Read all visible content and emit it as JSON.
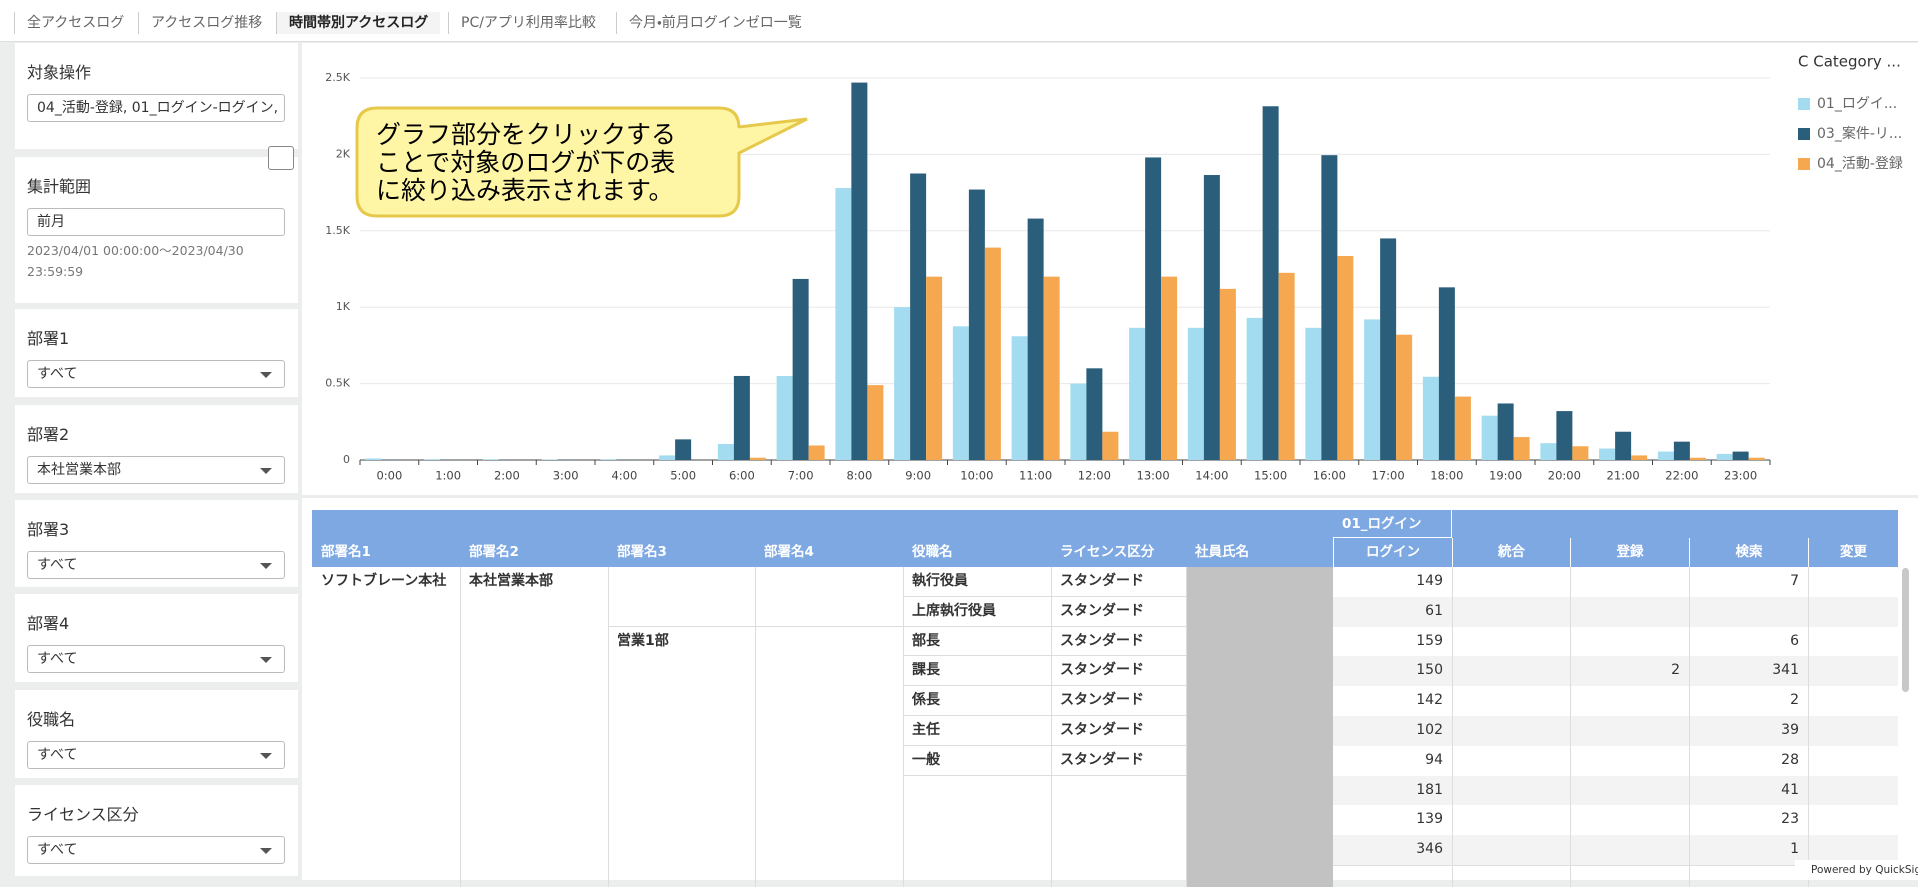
{
  "tabs": [
    "全アクセスログ",
    "アクセスログ推移",
    "時間帯別アクセスログ",
    "PC/アプリ利用率比較",
    "今月・前月ログインゼロ一覧"
  ],
  "active_tab": 2,
  "filters": [
    {
      "label": "対象操作",
      "value": "04_活動-登録, 01_ログイン-ログイン,"
    },
    {
      "label": "集計範囲",
      "value": "前月",
      "note": "2023/04/01 00:00:00～2023/04/30 23:59:59"
    },
    {
      "label": "部署1",
      "value": "すべて",
      "dropdown": true
    },
    {
      "label": "部署2",
      "value": "本社営業本部",
      "dropdown": true
    },
    {
      "label": "部署3",
      "value": "すべて",
      "dropdown": true
    },
    {
      "label": "部署4",
      "value": "すべて",
      "dropdown": true
    },
    {
      "label": "役職名",
      "value": "すべて",
      "dropdown": true
    },
    {
      "label": "ライセンス区分",
      "value": "すべて",
      "dropdown": true
    }
  ],
  "chart_data": {
    "type": "bar",
    "legend_title": "C Category ...",
    "legend": "right",
    "grid": true,
    "categories": [
      "0:00",
      "1:00",
      "2:00",
      "3:00",
      "4:00",
      "5:00",
      "6:00",
      "7:00",
      "8:00",
      "9:00",
      "10:00",
      "11:00",
      "12:00",
      "13:00",
      "14:00",
      "15:00",
      "16:00",
      "17:00",
      "18:00",
      "19:00",
      "20:00",
      "21:00",
      "22:00",
      "23:00"
    ],
    "series": [
      {
        "name": "01_ログイ...",
        "color": "#a3dcf0",
        "values": [
          10,
          5,
          5,
          3,
          5,
          30,
          105,
          550,
          1780,
          1000,
          875,
          810,
          500,
          865,
          865,
          930,
          865,
          920,
          545,
          290,
          110,
          75,
          55,
          40
        ]
      },
      {
        "name": "03_案件-リ...",
        "color": "#2b5e7a",
        "values": [
          2,
          2,
          2,
          2,
          2,
          135,
          550,
          1185,
          2470,
          1875,
          1770,
          1580,
          600,
          1980,
          1865,
          2315,
          1995,
          1450,
          1130,
          370,
          320,
          185,
          120,
          55
        ]
      },
      {
        "name": "04_活動-登録",
        "color": "#f5a84f",
        "values": [
          0,
          0,
          0,
          0,
          0,
          0,
          15,
          95,
          490,
          1200,
          1390,
          1200,
          185,
          1200,
          1120,
          1225,
          1335,
          820,
          415,
          150,
          90,
          30,
          15,
          15
        ]
      }
    ],
    "ylim": [
      0,
      2500
    ],
    "yticks": [
      0,
      {
        "value": 500,
        "label": "0.5K"
      },
      {
        "value": 1000,
        "label": "1K"
      },
      {
        "value": 1500,
        "label": "1.5K"
      },
      {
        "value": 2000,
        "label": "2K"
      },
      {
        "value": 2500,
        "label": "2.5K"
      }
    ]
  },
  "callout": {
    "lines": [
      "グラフ部分をクリックする",
      "ことで対象のログが下の表",
      "に絞り込み表示されます。"
    ]
  },
  "table": {
    "group_header": "01_ログイン",
    "columns": [
      "部署名1",
      "部署名2",
      "部署名3",
      "部署名4",
      "役職名",
      "ライセンス区分",
      "社員氏名",
      "ログイン",
      "統合",
      "登録",
      "検索",
      "変更"
    ],
    "rows": [
      {
        "0": "ソフトブレーン本社",
        "1": "本社営業本部",
        "4": "執行役員",
        "5": "スタンダード",
        "7": 149,
        "10": 7
      },
      {
        "4": "上席執行役員",
        "5": "スタンダード",
        "7": 61
      },
      {
        "2": "営業1部",
        "4": "部長",
        "5": "スタンダード",
        "7": 159,
        "10": 6
      },
      {
        "4": "課長",
        "5": "スタンダード",
        "7": 150,
        "9": 2,
        "10": 341
      },
      {
        "4": "係長",
        "5": "スタンダード",
        "7": 142,
        "10": 2
      },
      {
        "4": "主任",
        "5": "スタンダード",
        "7": 102,
        "10": 39
      },
      {
        "4": "一般",
        "5": "スタンダード",
        "7": 94,
        "10": 28
      },
      {
        "7": 181,
        "10": 41
      },
      {
        "7": 139,
        "10": 23
      },
      {
        "7": 346,
        "10": 1
      }
    ]
  },
  "footer": "Powered by QuickSight"
}
